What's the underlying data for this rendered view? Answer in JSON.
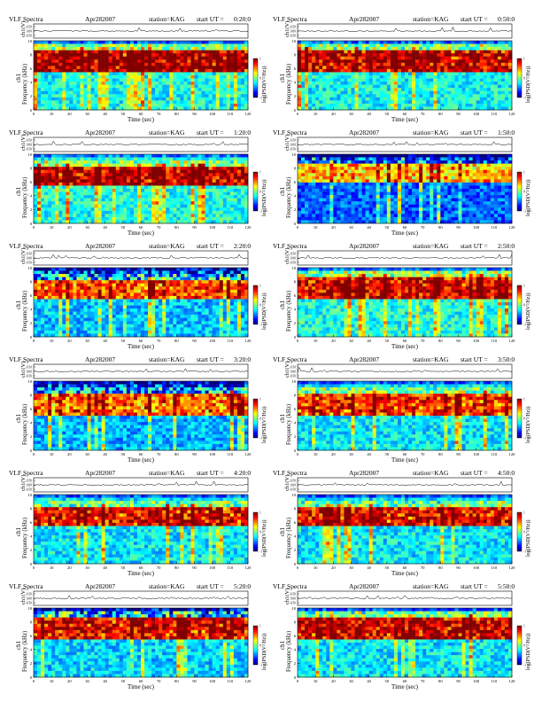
{
  "page": {
    "background": "#ffffff"
  },
  "common": {
    "title_left": "VLF Spectra",
    "date": "Apr282007",
    "station": "station=KAG",
    "start_prefix": "start  UT =",
    "ch1_label": "ch1(V)",
    "amp_ticks": [
      "0.50",
      "0.00",
      "-0.50"
    ],
    "freq_label_a": "ch1",
    "freq_label_b": "Frequency  (kHz)",
    "freq_ticks": [
      "0",
      "2",
      "4",
      "6",
      "8",
      "10"
    ],
    "xlabel": "Time  (sec)",
    "time_ticks": [
      "0",
      "10",
      "20",
      "30",
      "40",
      "50",
      "60",
      "70",
      "80",
      "90",
      "100",
      "110",
      "120"
    ],
    "colorbar_label": "log(PSD(V²/Hz))",
    "colorbar_ticks": [
      "1",
      "0",
      "-1"
    ]
  },
  "colormap": [
    "#00007f",
    "#0000ff",
    "#007fff",
    "#00ffff",
    "#7fff7f",
    "#ffff00",
    "#ff7f00",
    "#ff0000",
    "#7f0000"
  ],
  "chart_data": [
    {
      "type": "heatmap",
      "start_ut": "0:20:0",
      "x_range": [
        0,
        120
      ],
      "y_range": [
        0,
        10
      ],
      "band_khz": [
        5.5,
        8.5
      ],
      "band_strength": 0.75,
      "noise_floor": 0.38,
      "dark_top": false
    },
    {
      "type": "heatmap",
      "start_ut": "0:50:0",
      "x_range": [
        0,
        120
      ],
      "y_range": [
        0,
        10
      ],
      "band_khz": [
        5.5,
        8.5
      ],
      "band_strength": 0.7,
      "noise_floor": 0.38,
      "dark_top": false
    },
    {
      "type": "heatmap",
      "start_ut": "1:20:0",
      "x_range": [
        0,
        120
      ],
      "y_range": [
        0,
        10
      ],
      "band_khz": [
        5.5,
        8
      ],
      "band_strength": 0.7,
      "noise_floor": 0.4,
      "dark_top": false
    },
    {
      "type": "heatmap",
      "start_ut": "1:50:0",
      "x_range": [
        0,
        120
      ],
      "y_range": [
        0,
        10
      ],
      "band_khz": [
        6,
        8.5
      ],
      "band_strength": 0.6,
      "noise_floor": 0.22,
      "dark_top": true
    },
    {
      "type": "heatmap",
      "start_ut": "2:20:0",
      "x_range": [
        0,
        120
      ],
      "y_range": [
        0,
        10
      ],
      "band_khz": [
        5.5,
        8
      ],
      "band_strength": 0.6,
      "noise_floor": 0.32,
      "dark_top": true
    },
    {
      "type": "heatmap",
      "start_ut": "2:50:0",
      "x_range": [
        0,
        120
      ],
      "y_range": [
        0,
        10
      ],
      "band_khz": [
        5.5,
        8.5
      ],
      "band_strength": 0.65,
      "noise_floor": 0.4,
      "dark_top": false
    },
    {
      "type": "heatmap",
      "start_ut": "3:20:0",
      "x_range": [
        0,
        120
      ],
      "y_range": [
        0,
        10
      ],
      "band_khz": [
        5,
        8
      ],
      "band_strength": 0.6,
      "noise_floor": 0.3,
      "dark_top": true
    },
    {
      "type": "heatmap",
      "start_ut": "3:50:0",
      "x_range": [
        0,
        120
      ],
      "y_range": [
        0,
        10
      ],
      "band_khz": [
        5,
        8
      ],
      "band_strength": 0.6,
      "noise_floor": 0.36,
      "dark_top": false
    },
    {
      "type": "heatmap",
      "start_ut": "4:20:0",
      "x_range": [
        0,
        120
      ],
      "y_range": [
        0,
        10
      ],
      "band_khz": [
        5.5,
        8
      ],
      "band_strength": 0.68,
      "noise_floor": 0.36,
      "dark_top": false
    },
    {
      "type": "heatmap",
      "start_ut": "4:50:0",
      "x_range": [
        0,
        120
      ],
      "y_range": [
        0,
        10
      ],
      "band_khz": [
        5.5,
        8
      ],
      "band_strength": 0.68,
      "noise_floor": 0.36,
      "dark_top": false
    },
    {
      "type": "heatmap",
      "start_ut": "5:20:0",
      "x_range": [
        0,
        120
      ],
      "y_range": [
        0,
        10
      ],
      "band_khz": [
        5.5,
        8.5
      ],
      "band_strength": 0.72,
      "noise_floor": 0.34,
      "dark_top": true
    },
    {
      "type": "heatmap",
      "start_ut": "5:50:0",
      "x_range": [
        0,
        120
      ],
      "y_range": [
        0,
        10
      ],
      "band_khz": [
        5.5,
        8.5
      ],
      "band_strength": 0.74,
      "noise_floor": 0.36,
      "dark_top": false
    }
  ]
}
